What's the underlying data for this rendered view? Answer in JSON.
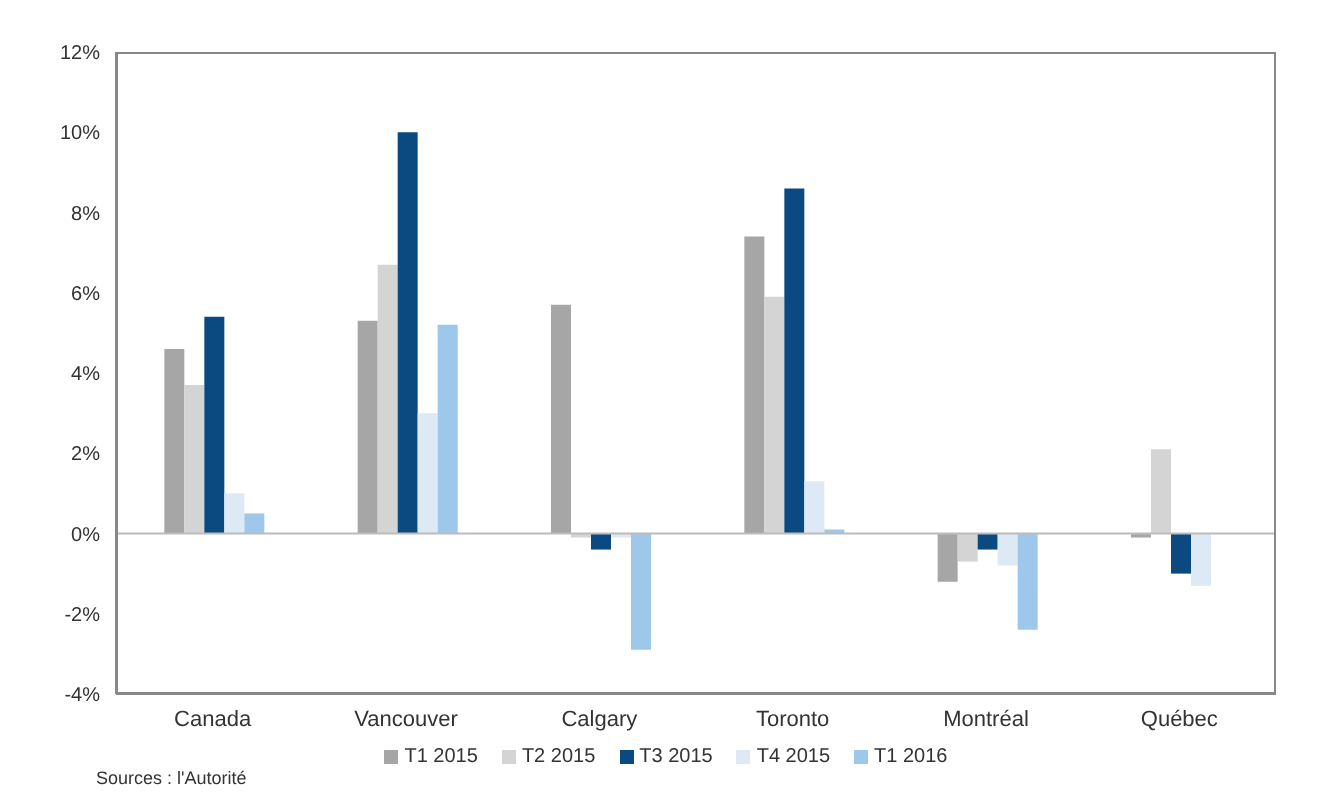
{
  "chart_data": {
    "type": "bar",
    "categories": [
      "Canada",
      "Vancouver",
      "Calgary",
      "Toronto",
      "Montréal",
      "Québec"
    ],
    "series": [
      {
        "name": "T1 2015",
        "color": "#a6a6a6",
        "values": [
          4.6,
          5.3,
          5.7,
          7.4,
          -1.2,
          -0.1
        ]
      },
      {
        "name": "T2 2015",
        "color": "#d4d4d4",
        "values": [
          3.7,
          6.7,
          -0.1,
          5.9,
          -0.7,
          2.1
        ]
      },
      {
        "name": "T3 2015",
        "color": "#0b4a80",
        "values": [
          5.4,
          10.0,
          -0.4,
          8.6,
          -0.4,
          -1.0
        ]
      },
      {
        "name": "T4 2015",
        "color": "#dde9f5",
        "values": [
          1.0,
          3.0,
          -0.1,
          1.3,
          -0.8,
          -1.3
        ]
      },
      {
        "name": "T1 2016",
        "color": "#9dc8ec",
        "values": [
          0.5,
          5.2,
          -2.9,
          0.1,
          -2.4,
          0
        ]
      }
    ],
    "ylim": [
      -4,
      12
    ],
    "yticks": [
      {
        "value": -4,
        "label": "-4%"
      },
      {
        "value": -2,
        "label": "-2%"
      },
      {
        "value": 0,
        "label": "0%"
      },
      {
        "value": 2,
        "label": "2%"
      },
      {
        "value": 4,
        "label": "4%"
      },
      {
        "value": 6,
        "label": "6%"
      },
      {
        "value": 8,
        "label": "8%"
      },
      {
        "value": 10,
        "label": "10%"
      },
      {
        "value": 12,
        "label": "12%"
      }
    ],
    "grid": false,
    "ref_lines": [
      {
        "axis": "y",
        "value": 0,
        "color": "#bbbbbb"
      }
    ],
    "legend": "bottom",
    "annotations": [
      "Sources : l'Autorité"
    ]
  }
}
